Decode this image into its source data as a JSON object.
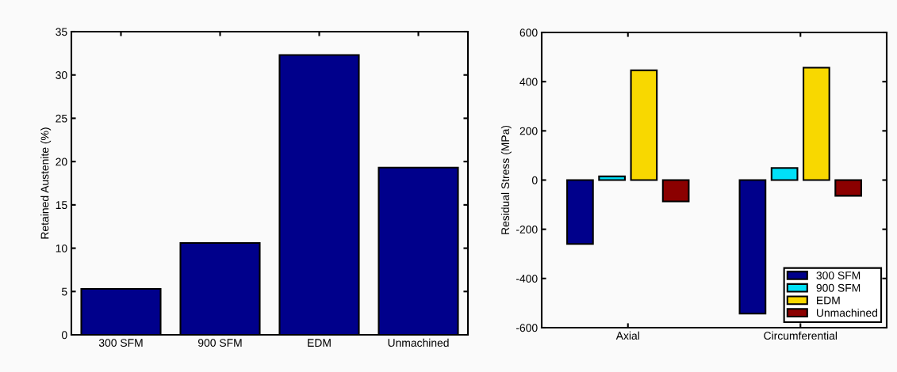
{
  "chart_data": [
    {
      "type": "bar",
      "ylabel": "Retained Austenite (%)",
      "categories": [
        "300 SFM",
        "900 SFM",
        "EDM",
        "Unmachined"
      ],
      "values": [
        5.3,
        10.6,
        32.3,
        19.3
      ],
      "color": "#00008b",
      "ylim": [
        0,
        35
      ],
      "yticks": [
        0,
        5,
        10,
        15,
        20,
        25,
        30,
        35
      ],
      "grid": false,
      "legend": false
    },
    {
      "type": "bar",
      "ylabel": "Residual Stress (MPa)",
      "categories": [
        "Axial",
        "Circumferential"
      ],
      "ylim": [
        -600,
        600
      ],
      "yticks": [
        -600,
        -400,
        -200,
        0,
        200,
        400,
        600
      ],
      "grid": false,
      "legend": "bottom right",
      "series": [
        {
          "name": "300 SFM",
          "color": "#00008b",
          "values": [
            -260,
            -543
          ]
        },
        {
          "name": "900 SFM",
          "color": "#00e0f8",
          "values": [
            15,
            49
          ]
        },
        {
          "name": "EDM",
          "color": "#f8d800",
          "values": [
            446,
            457
          ]
        },
        {
          "name": "Unmachined",
          "color": "#8b0000",
          "values": [
            -87,
            -64
          ]
        }
      ]
    }
  ]
}
